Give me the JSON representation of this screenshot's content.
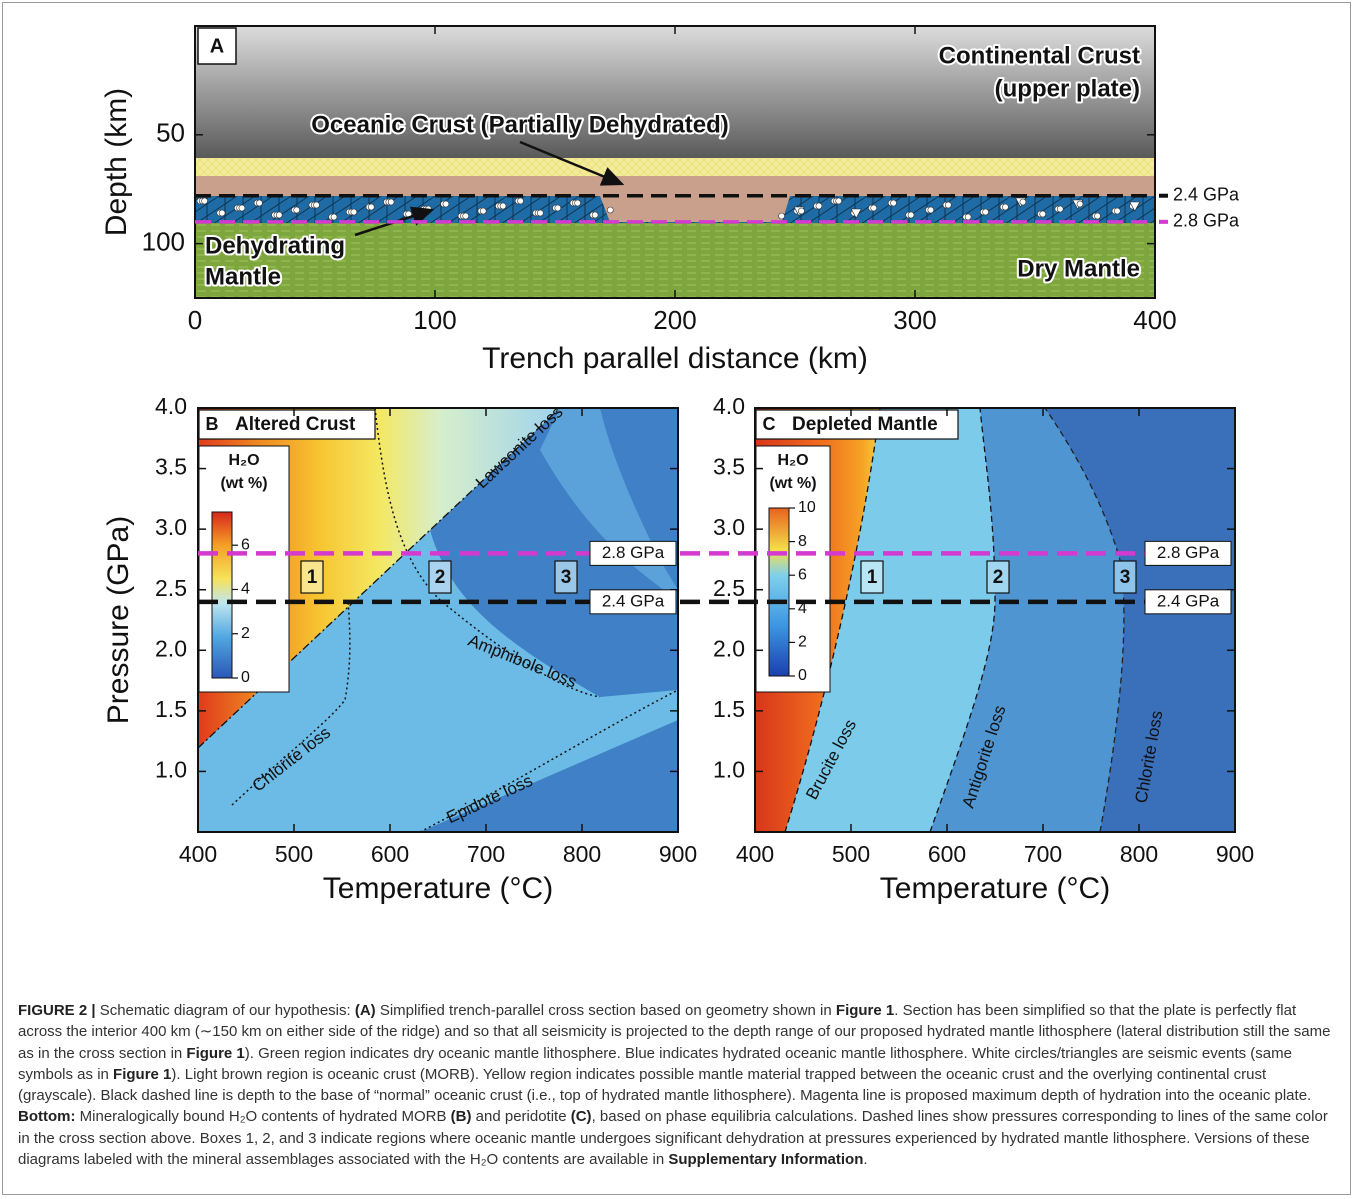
{
  "chart_data": [
    {
      "type": "cross-section",
      "label": "A",
      "xlabel": "Trench parallel distance (km)",
      "ylabel": "Depth (km)",
      "xlim": [
        0,
        400
      ],
      "xticks": [
        0,
        100,
        200,
        300,
        400
      ],
      "ylim": [
        0,
        125
      ],
      "inverted": true,
      "yticks": [
        50,
        100
      ],
      "annotations": [
        "Continental Crust",
        "(upper plate)",
        "Oceanic Crust (Partially Dehydrated)",
        "Dehydrating",
        "Mantle",
        "Dry Mantle"
      ],
      "lines": [
        {
          "label": "2.4 GPa",
          "depth": 78,
          "color": "#111111"
        },
        {
          "label": "2.8 GPa",
          "depth": 90,
          "color": "#d43ad0"
        }
      ]
    },
    {
      "type": "heatmap",
      "label": "B",
      "title": "Altered Crust",
      "xlabel": "Temperature (°C)",
      "ylabel": "Pressure (GPa)",
      "xlim": [
        400,
        900
      ],
      "xticks": [
        400,
        500,
        600,
        700,
        800,
        900
      ],
      "ylim": [
        0.5,
        4.0
      ],
      "yticks": [
        {
          "value": 1,
          "label": "1.0"
        },
        1.5,
        {
          "value": 2,
          "label": "2.0"
        },
        2.5,
        {
          "value": 3,
          "label": "3.0"
        },
        3.5,
        {
          "value": 4,
          "label": "4.0"
        }
      ],
      "colorbar": {
        "title": "H₂O",
        "subtitle": "(wt %)",
        "lim": [
          0,
          7.5
        ],
        "ticks": [
          0,
          2,
          4,
          6
        ]
      },
      "boundaries": [
        "Lawsonite loss",
        "Amphibole loss",
        "Chlorite loss",
        "Epidote loss"
      ],
      "boxes": [
        "1",
        "2",
        "3"
      ],
      "lines": [
        {
          "label": "2.8 GPa",
          "value": 2.8,
          "color": "#d43ad0"
        },
        {
          "label": "2.4 GPa",
          "value": 2.4,
          "color": "#111111"
        }
      ]
    },
    {
      "type": "heatmap",
      "label": "C",
      "title": "Depleted Mantle",
      "xlabel": "Temperature (°C)",
      "ylabel": "Pressure (GPa)",
      "xlim": [
        400,
        900
      ],
      "xticks": [
        400,
        500,
        600,
        700,
        800,
        900
      ],
      "ylim": [
        0.5,
        4.0
      ],
      "yticks": [
        {
          "value": 1,
          "label": "1.0"
        },
        1.5,
        {
          "value": 2,
          "label": "2.0"
        },
        2.5,
        {
          "value": 3,
          "label": "3.0"
        },
        3.5,
        {
          "value": 4,
          "label": "4.0"
        }
      ],
      "colorbar": {
        "title": "H₂O",
        "subtitle": "(wt %)",
        "lim": [
          0,
          10
        ],
        "ticks": [
          0,
          2,
          4,
          6,
          8,
          10
        ]
      },
      "boundaries": [
        "Brucite loss",
        "Antigorite loss",
        "Chlorite loss"
      ],
      "boxes": [
        "1",
        "2",
        "3"
      ],
      "lines": [
        {
          "label": "2.8 GPa",
          "value": 2.8,
          "color": "#d43ad0"
        },
        {
          "label": "2.4 GPa",
          "value": 2.4,
          "color": "#111111"
        }
      ]
    }
  ],
  "caption": {
    "runs": [
      {
        "text": "FIGURE 2 |",
        "bold": true
      },
      {
        "text": " Schematic diagram of our hypothesis: "
      },
      {
        "text": "(A)",
        "bold": true
      },
      {
        "text": " Simplified trench-parallel cross section based on geometry shown in "
      },
      {
        "text": "Figure 1",
        "bold": true
      },
      {
        "text": ". Section has been simplified so that the plate is perfectly flat across the interior 400 km (∼150 km on either side of the ridge) and so that all seismicity is projected to the depth range of our proposed hydrated mantle lithosphere (lateral distribution still the same as in the cross section in "
      },
      {
        "text": "Figure 1",
        "bold": true
      },
      {
        "text": "). Green region indicates dry oceanic mantle lithosphere. Blue indicates hydrated oceanic mantle lithosphere. White circles/triangles are seismic events (same symbols as in "
      },
      {
        "text": "Figure 1",
        "bold": true
      },
      {
        "text": "). Light brown region is oceanic crust (MORB). Yellow region indicates possible mantle material trapped between the oceanic crust and the overlying continental crust (grayscale). Black dashed line is depth to the base of “normal” oceanic crust (i.e., top of hydrated mantle lithosphere). Magenta line is proposed maximum depth of hydration into the oceanic plate. "
      },
      {
        "text": "Bottom:",
        "bold": true
      },
      {
        "text": " Mineralogically bound H₂O contents of hydrated MORB "
      },
      {
        "text": "(B)",
        "bold": true
      },
      {
        "text": " and peridotite "
      },
      {
        "text": "(C)",
        "bold": true
      },
      {
        "text": ", based on phase equilibria calculations. Dashed lines show pressures corresponding to lines of the same color in the cross section above. Boxes 1, 2, and 3 indicate regions where oceanic mantle undergoes significant dehydration at pressures experienced by hydrated mantle lithosphere. Versions of these diagrams labeled with the mineral assemblages associated with the H₂O contents are available in "
      },
      {
        "text": "Supplementary Information",
        "bold": true
      },
      {
        "text": "."
      }
    ]
  }
}
